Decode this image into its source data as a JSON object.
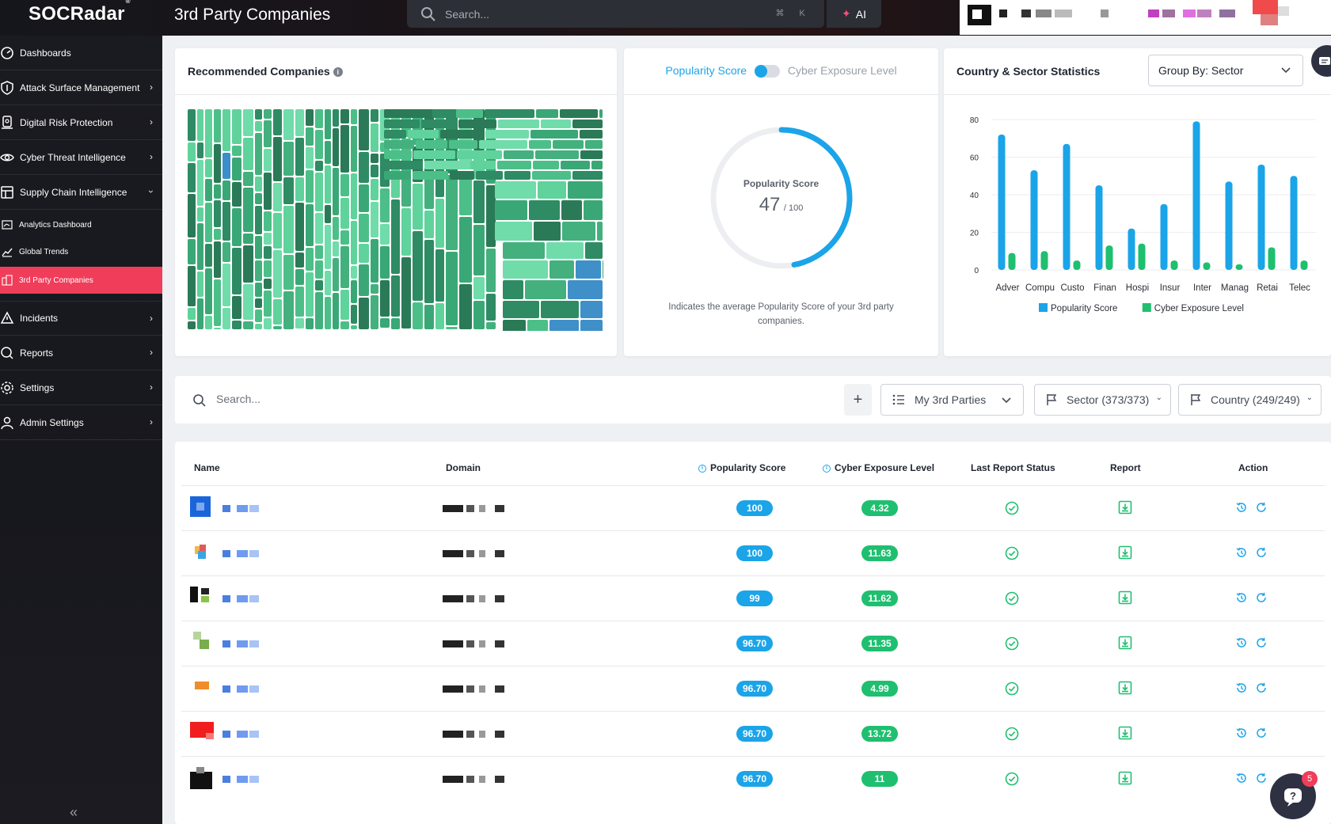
{
  "app": {
    "brand": "SOCRadar",
    "brand_mark": "®",
    "page_title": "3rd Party Companies",
    "search_placeholder": "Search...",
    "kbd_cmd": "⌘",
    "kbd_k": "K",
    "ai_label": "AI"
  },
  "sidebar": {
    "items": [
      {
        "label": "Dashboards",
        "icon": "dashboard-icon",
        "has_chevron": false
      },
      {
        "label": "Attack Surface Management",
        "icon": "shield-icon",
        "has_chevron": true
      },
      {
        "label": "Digital Risk Protection",
        "icon": "fingerprint-icon",
        "has_chevron": true
      },
      {
        "label": "Cyber Threat Intelligence",
        "icon": "eye-icon",
        "has_chevron": true
      },
      {
        "label": "Supply Chain Intelligence",
        "icon": "chain-icon",
        "has_chevron": true,
        "expanded": true
      }
    ],
    "sub_items": [
      {
        "label": "Analytics Dashboard",
        "icon": "analytics-icon",
        "active": false
      },
      {
        "label": "Global Trends",
        "icon": "trends-icon",
        "active": false
      },
      {
        "label": "3rd Party Companies",
        "icon": "companies-icon",
        "active": true
      }
    ],
    "items_after": [
      {
        "label": "Incidents",
        "icon": "alert-icon",
        "has_chevron": true
      },
      {
        "label": "Reports",
        "icon": "report-icon",
        "has_chevron": true
      },
      {
        "label": "Settings",
        "icon": "gear-icon",
        "has_chevron": true
      },
      {
        "label": "Admin Settings",
        "icon": "admin-icon",
        "has_chevron": true
      }
    ],
    "collapse_glyph": "«"
  },
  "recommended": {
    "title": "Recommended Companies",
    "info": "i"
  },
  "score_card": {
    "toggle_on_label": "Popularity Score",
    "toggle_off_label": "Cyber Exposure Level",
    "gauge_title": "Popularity Score",
    "gauge_value": "47",
    "gauge_max": "/ 100",
    "value_fraction": 0.47,
    "caption": "Indicates the average Popularity Score of your 3rd party companies."
  },
  "stats_card": {
    "title": "Country & Sector Statistics",
    "group_by": "Group By: Sector"
  },
  "chart_data": {
    "type": "bar",
    "categories": [
      "Adver",
      "Compu",
      "Custo",
      "Finan",
      "Hospi",
      "Insur",
      "Inter",
      "Manag",
      "Retai",
      "Telec"
    ],
    "series": [
      {
        "name": "Popularity Score",
        "color": "#1ba4e8",
        "values": [
          72,
          53,
          67,
          45,
          22,
          35,
          79,
          47,
          56,
          50
        ]
      },
      {
        "name": "Cyber Exposure Level",
        "color": "#1fbf70",
        "values": [
          9,
          10,
          5,
          13,
          14,
          5,
          4,
          3,
          12,
          5
        ]
      }
    ],
    "yticks": [
      "0",
      "20",
      "40",
      "60",
      "80"
    ],
    "ylim": [
      0,
      80
    ],
    "grid": true,
    "legend_position": "bottom"
  },
  "filter_bar": {
    "search_placeholder": "Search...",
    "add_label": "+",
    "my_parties": "My 3rd Parties",
    "sector": "Sector (373/373)",
    "country": "Country (249/249)"
  },
  "table": {
    "headers": {
      "name": "Name",
      "domain": "Domain",
      "popularity": "Popularity Score",
      "exposure": "Cyber Exposure Level",
      "status": "Last Report Status",
      "report": "Report",
      "action": "Action"
    },
    "rows": [
      {
        "popularity": "100",
        "exposure": "4.32"
      },
      {
        "popularity": "100",
        "exposure": "11.63"
      },
      {
        "popularity": "99",
        "exposure": "11.62"
      },
      {
        "popularity": "96.70",
        "exposure": "11.35"
      },
      {
        "popularity": "96.70",
        "exposure": "4.99"
      },
      {
        "popularity": "96.70",
        "exposure": "13.72"
      },
      {
        "popularity": "96.70",
        "exposure": "11"
      }
    ]
  },
  "help": {
    "badge": "5"
  }
}
